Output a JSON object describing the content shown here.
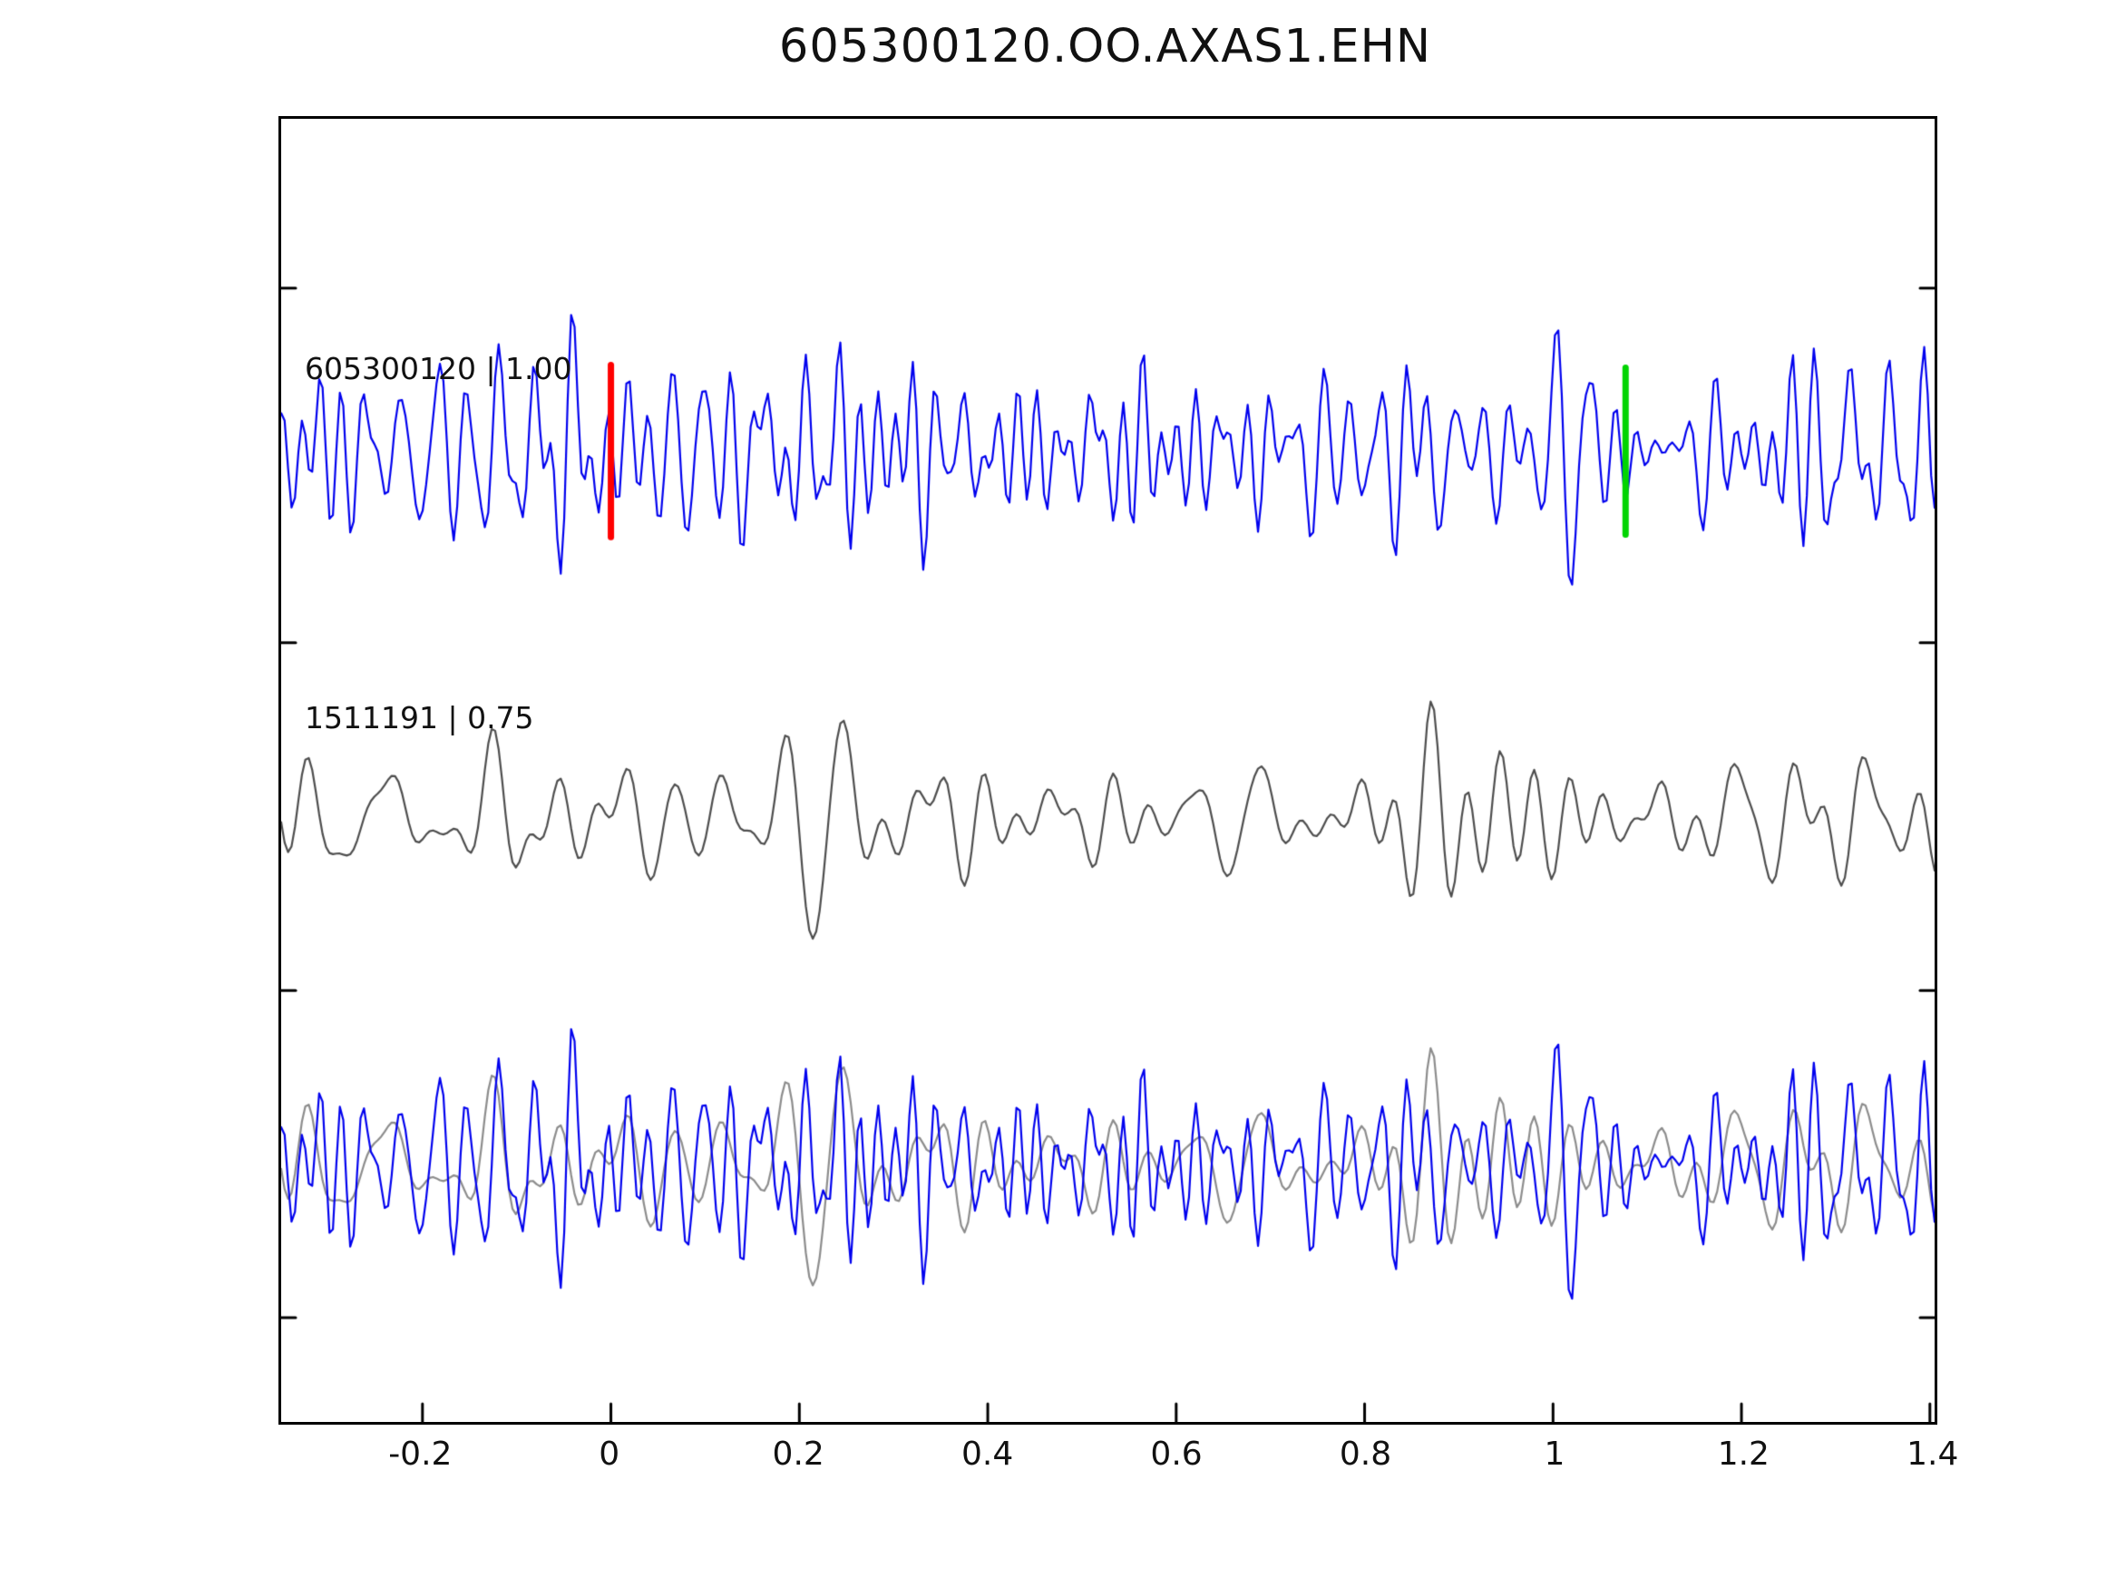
{
  "chart_data": {
    "type": "line",
    "title": "605300120.OO.AXAS1.EHN",
    "xlabel": "",
    "ylabel": "",
    "grid": false,
    "legend": "none",
    "xlim": [
      -0.35,
      1.405
    ],
    "xtick_values": [
      -0.2,
      0,
      0.2,
      0.4,
      0.6,
      0.8,
      1,
      1.2,
      1.4
    ],
    "xtick_labels": [
      "-0.2",
      "0",
      "0.2",
      "0.4",
      "0.6",
      "0.8",
      "1",
      "1.2",
      "1.4"
    ],
    "traces": [
      {
        "id": "template",
        "label": "605300120 | 1.00",
        "color": "#0000ee",
        "seed": 605300120,
        "rms_frac": 0.036,
        "fmin": 10,
        "fmax": 55
      },
      {
        "id": "candidate",
        "label": "1511191 | 0.75",
        "color": "#4d4d4d",
        "seed": 1511191,
        "rms_frac": 0.024,
        "fmin": 7,
        "fmax": 30,
        "burst": {
          "t0": 0.21,
          "sigma": 0.05,
          "amp_frac": 0.125,
          "freq": 15,
          "phase": -2.04
        }
      }
    ],
    "panels": [
      {
        "y_frac": 0.255,
        "trace_ids": [
          "template"
        ],
        "colors": [
          "#0000ee"
        ]
      },
      {
        "y_frac": 0.537,
        "trace_ids": [
          "candidate"
        ],
        "colors": [
          "#4d4d4d"
        ]
      },
      {
        "y_frac": 0.803,
        "trace_ids": [
          "candidate",
          "template"
        ],
        "colors": [
          "#8c8c8c",
          "#0000ee"
        ]
      }
    ],
    "markers": [
      {
        "name": "origin-pick",
        "x": 0.0,
        "color": "#ff0000",
        "panel": 0,
        "half_height_frac": 0.066
      },
      {
        "name": "arrival-pick",
        "x": 1.077,
        "color": "#00d400",
        "panel": 0,
        "half_height_frac": 0.064
      }
    ]
  }
}
